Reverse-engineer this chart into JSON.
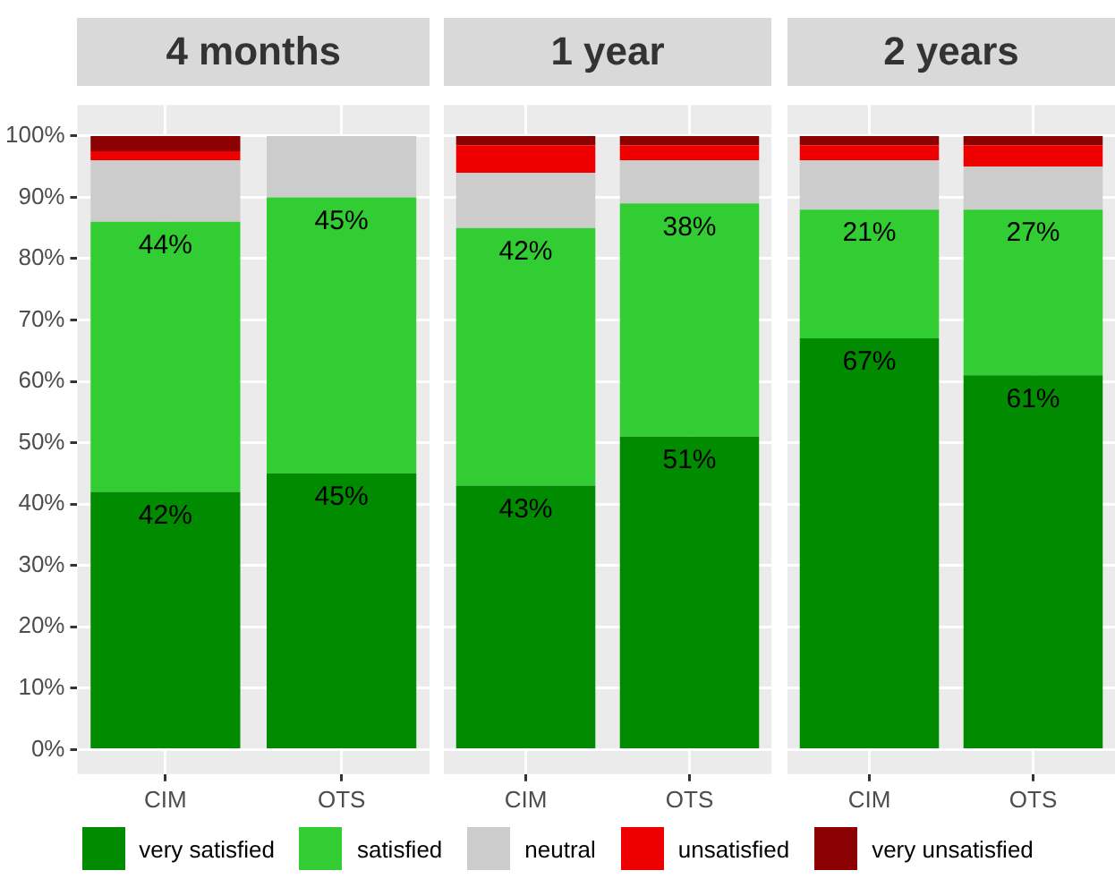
{
  "chart_data": [
    {
      "type": "bar",
      "title": "4 months",
      "categories": [
        "CIM",
        "OTS"
      ],
      "stacked": true,
      "ylim": [
        -4,
        105
      ],
      "yticks": [
        {
          "value": 0,
          "label": "0%"
        },
        {
          "value": 10,
          "label": "10%"
        },
        {
          "value": 20,
          "label": "20%"
        },
        {
          "value": 30,
          "label": "30%"
        },
        {
          "value": 40,
          "label": "40%"
        },
        {
          "value": 50,
          "label": "50%"
        },
        {
          "value": 60,
          "label": "60%"
        },
        {
          "value": 70,
          "label": "70%"
        },
        {
          "value": 80,
          "label": "80%"
        },
        {
          "value": 90,
          "label": "90%"
        },
        {
          "value": 100,
          "label": "100%"
        }
      ],
      "grid": true,
      "legend": "bottom",
      "series": [
        {
          "name": "very satisfied",
          "color": "#008b00",
          "values": [
            42,
            45
          ],
          "value_labels": [
            "42%",
            "45%"
          ]
        },
        {
          "name": "satisfied",
          "color": "#32cd32",
          "values": [
            44,
            45
          ],
          "value_labels": [
            "44%",
            "45%"
          ]
        },
        {
          "name": "neutral",
          "color": "#cccccc",
          "values": [
            10,
            10
          ]
        },
        {
          "name": "unsatisfied",
          "color": "#ee0000",
          "values": [
            1.5,
            0
          ]
        },
        {
          "name": "very unsatisfied",
          "color": "#8b0000",
          "values": [
            2.5,
            0
          ]
        }
      ]
    },
    {
      "type": "bar",
      "title": "1 year",
      "categories": [
        "CIM",
        "OTS"
      ],
      "stacked": true,
      "ylim": [
        -4,
        105
      ],
      "yticks": [
        {
          "value": 0,
          "label": null
        },
        {
          "value": 10,
          "label": null
        },
        {
          "value": 20,
          "label": null
        },
        {
          "value": 30,
          "label": null
        },
        {
          "value": 40,
          "label": null
        },
        {
          "value": 50,
          "label": null
        },
        {
          "value": 60,
          "label": null
        },
        {
          "value": 70,
          "label": null
        },
        {
          "value": 80,
          "label": null
        },
        {
          "value": 90,
          "label": null
        },
        {
          "value": 100,
          "label": null
        }
      ],
      "tick_labels": "x",
      "grid": true,
      "series": [
        {
          "color": "#008b00",
          "values": [
            43,
            51
          ],
          "value_labels": [
            "43%",
            "51%"
          ]
        },
        {
          "color": "#32cd32",
          "values": [
            42,
            38
          ],
          "value_labels": [
            "42%",
            "38%"
          ]
        },
        {
          "color": "#cccccc",
          "values": [
            9,
            7
          ]
        },
        {
          "color": "#ee0000",
          "values": [
            4.5,
            2.5
          ]
        },
        {
          "color": "#8b0000",
          "values": [
            1.5,
            1.5
          ]
        }
      ]
    },
    {
      "type": "bar",
      "title": "2 years",
      "categories": [
        "CIM",
        "OTS"
      ],
      "stacked": true,
      "ylim": [
        -4,
        105
      ],
      "yticks": [
        {
          "value": 0,
          "label": null
        },
        {
          "value": 10,
          "label": null
        },
        {
          "value": 20,
          "label": null
        },
        {
          "value": 30,
          "label": null
        },
        {
          "value": 40,
          "label": null
        },
        {
          "value": 50,
          "label": null
        },
        {
          "value": 60,
          "label": null
        },
        {
          "value": 70,
          "label": null
        },
        {
          "value": 80,
          "label": null
        },
        {
          "value": 90,
          "label": null
        },
        {
          "value": 100,
          "label": null
        }
      ],
      "tick_labels": "x",
      "grid": true,
      "series": [
        {
          "color": "#008b00",
          "values": [
            67,
            61
          ],
          "value_labels": [
            "67%",
            "61%"
          ]
        },
        {
          "color": "#32cd32",
          "values": [
            21,
            27
          ],
          "value_labels": [
            "21%",
            "27%"
          ]
        },
        {
          "color": "#cccccc",
          "values": [
            8,
            7
          ]
        },
        {
          "color": "#ee0000",
          "values": [
            2.5,
            3.5
          ]
        },
        {
          "color": "#8b0000",
          "values": [
            1.5,
            1.5
          ]
        }
      ]
    }
  ]
}
